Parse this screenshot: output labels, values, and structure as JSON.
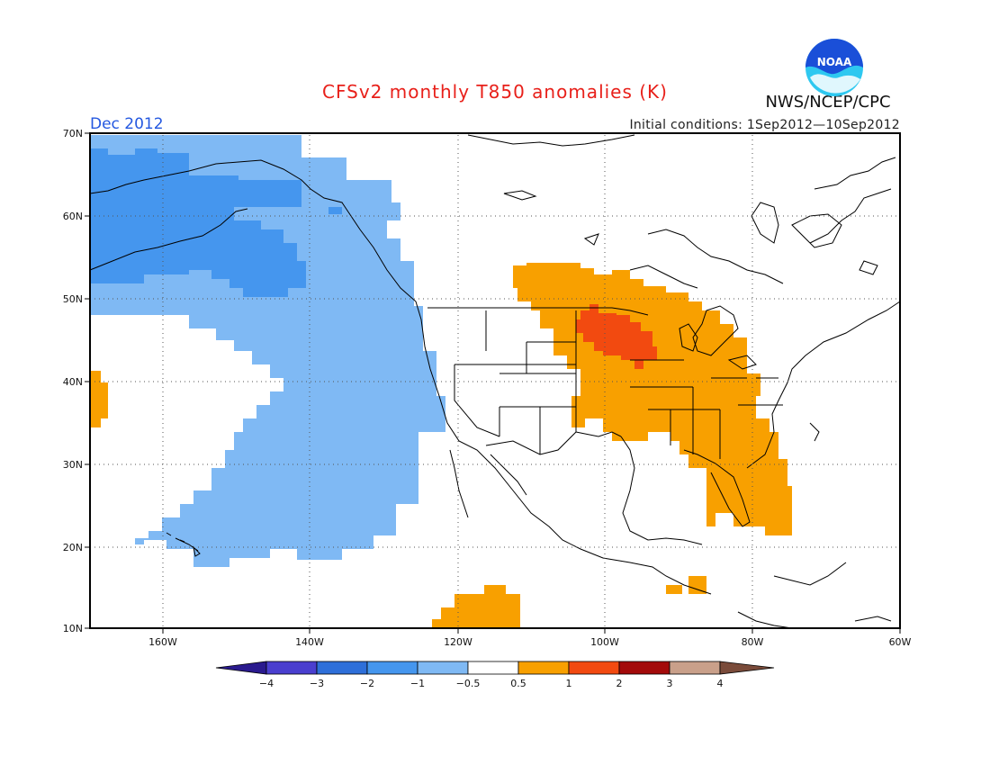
{
  "header": {
    "title": "CFSv2 monthly T850 anomalies (K)",
    "organization": "NWS/NCEP/CPC",
    "logo_text": "NOAA",
    "period": "Dec 2012",
    "initial_conditions": "Initial conditions: 1Sep2012—10Sep2012"
  },
  "map": {
    "lat_labels": [
      "70N",
      "60N",
      "50N",
      "40N",
      "30N",
      "20N",
      "10N"
    ],
    "lon_labels": [
      "160W",
      "140W",
      "120W",
      "100W",
      "80W",
      "60W"
    ],
    "grid": true
  },
  "colorbar": {
    "tick_labels": [
      "−4",
      "−3",
      "−2",
      "−1",
      "−0.5",
      "0.5",
      "1",
      "2",
      "3",
      "4"
    ],
    "colors": {
      "below_-4": "#2a1a8e",
      "-4_-3": "#4a3fcf",
      "-3_-2": "#2e6fd9",
      "-2_-1": "#4596ee",
      "-1_-0.5": "#7fb9f4",
      "-0.5_0.5": "#ffffff",
      "0.5_1": "#f8a000",
      "1_2": "#f24a10",
      "2_3": "#a30a0a",
      "3_4": "#c9a08a",
      "above_4": "#7a4b3a"
    }
  },
  "colors": {
    "title": "#e8201a",
    "period": "#2458e0",
    "logo_blue": "#1a4fd8",
    "logo_cyan": "#2ec8f0"
  }
}
